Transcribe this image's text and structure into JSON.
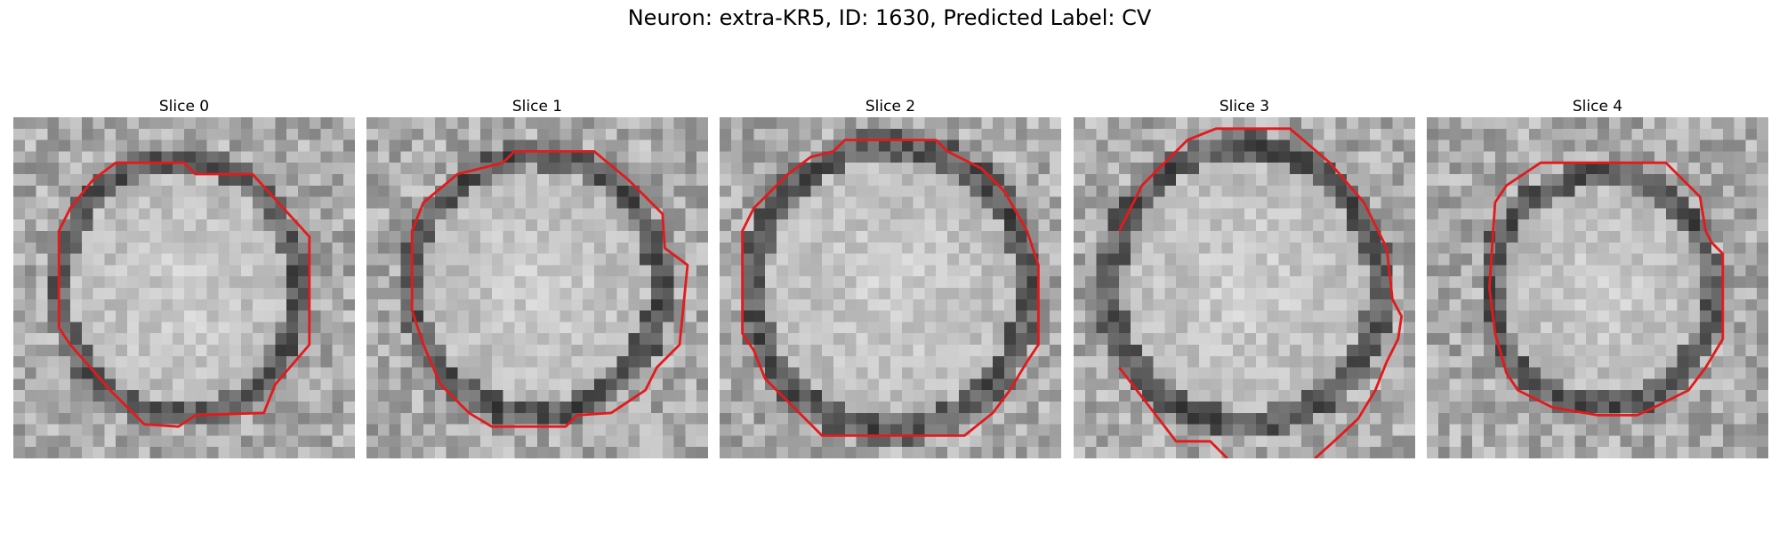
{
  "figure_title": "Neuron: extra-KR5, ID: 1630, Predicted Label: CV",
  "contour_color": "#e31a1c",
  "panels": [
    {
      "title": "Slice 0"
    },
    {
      "title": "Slice 1"
    },
    {
      "title": "Slice 2"
    },
    {
      "title": "Slice 3"
    },
    {
      "title": "Slice 4"
    }
  ]
}
